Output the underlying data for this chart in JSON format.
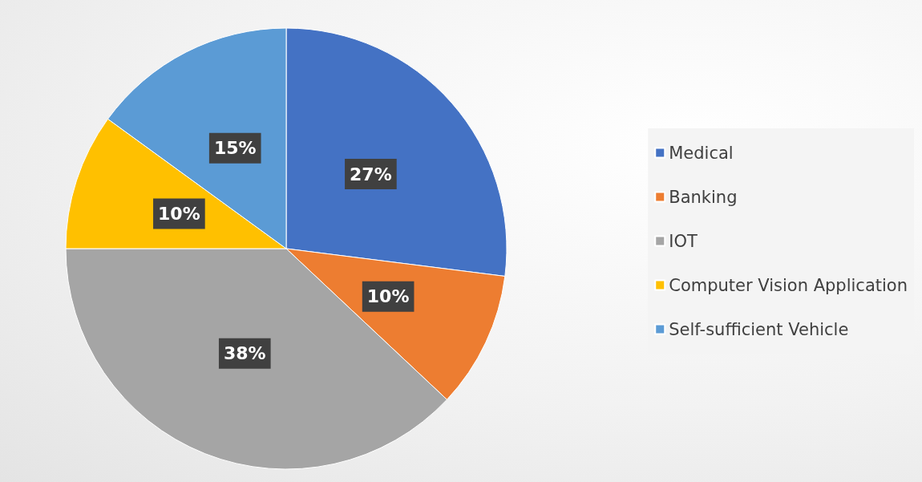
{
  "chart_data": {
    "type": "pie",
    "categories": [
      "Medical",
      "Banking",
      "IOT",
      "Computer Vision Application",
      "Self-sufficient Vehicle"
    ],
    "values": [
      27,
      10,
      38,
      10,
      15
    ],
    "value_labels": [
      "27%",
      "10%",
      "38%",
      "10%",
      "15%"
    ],
    "colors": [
      "#4472c4",
      "#ed7d31",
      "#a5a5a5",
      "#ffc000",
      "#5b9bd5"
    ],
    "legend": "right"
  }
}
